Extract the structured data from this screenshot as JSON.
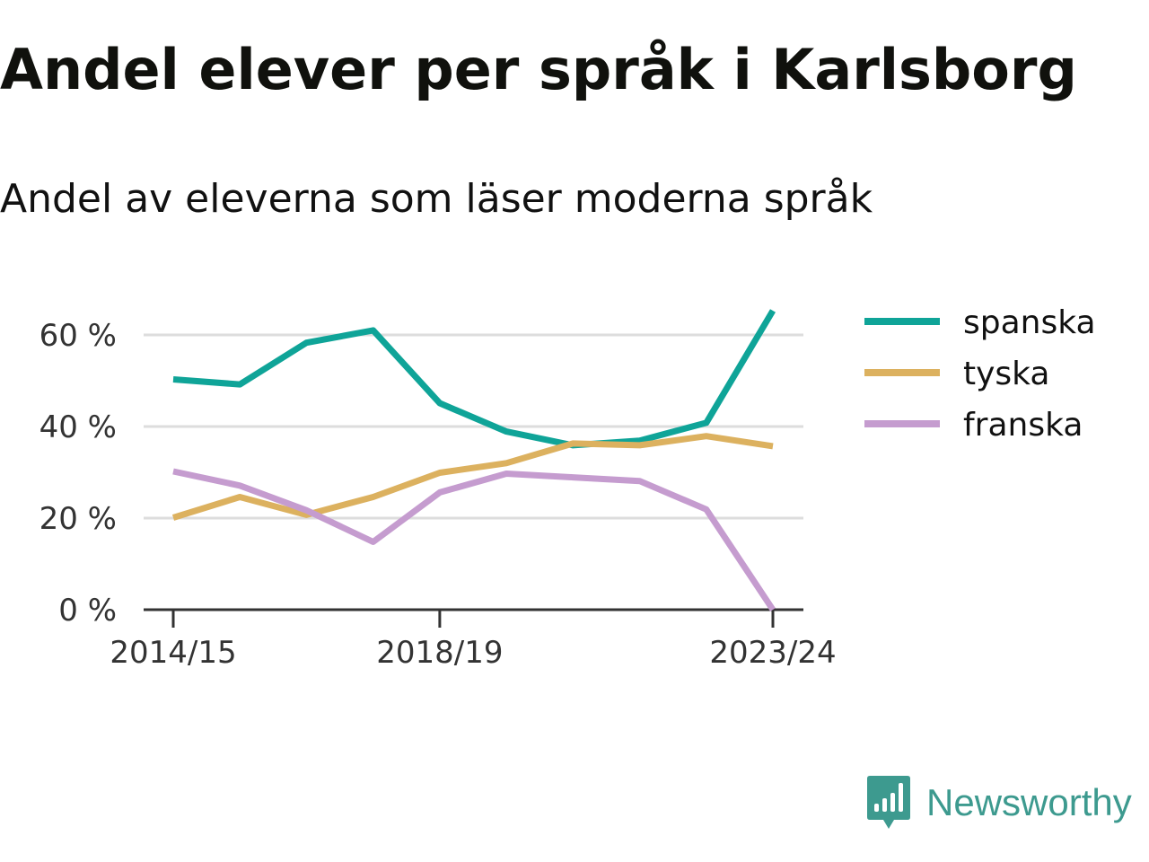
{
  "title": "Andel elever per språk i Karlsborg",
  "subtitle": "Andel av eleverna som läser moderna språk",
  "brand": {
    "name": "Newsworthy",
    "color": "#3d9a8f",
    "icon": "bar-chart-speech-bubble-icon"
  },
  "chart_data": {
    "type": "line",
    "x_tick_labels": [
      "2014/15",
      "2018/19",
      "2023/24"
    ],
    "y_tick_labels": [
      "0 %",
      "20 %",
      "40 %",
      "60 %"
    ],
    "y_ticks": [
      0,
      20,
      40,
      60
    ],
    "ylim": [
      0,
      67
    ],
    "grid": true,
    "legend_position": "right",
    "series": [
      {
        "name": "spanska",
        "color": "#0fa498",
        "values": [
          50.3,
          49.2,
          58.3,
          61.0,
          45.1,
          38.9,
          35.9,
          36.9,
          40.8,
          65.3
        ]
      },
      {
        "name": "tyska",
        "color": "#dcb15f",
        "values": [
          20.1,
          24.6,
          20.7,
          24.6,
          29.9,
          32.0,
          36.3,
          35.9,
          37.9,
          35.7
        ]
      },
      {
        "name": "franska",
        "color": "#c59ccf",
        "values": [
          30.2,
          27.1,
          21.7,
          14.8,
          25.6,
          29.7,
          28.9,
          28.1,
          21.9,
          0.0
        ]
      }
    ]
  }
}
